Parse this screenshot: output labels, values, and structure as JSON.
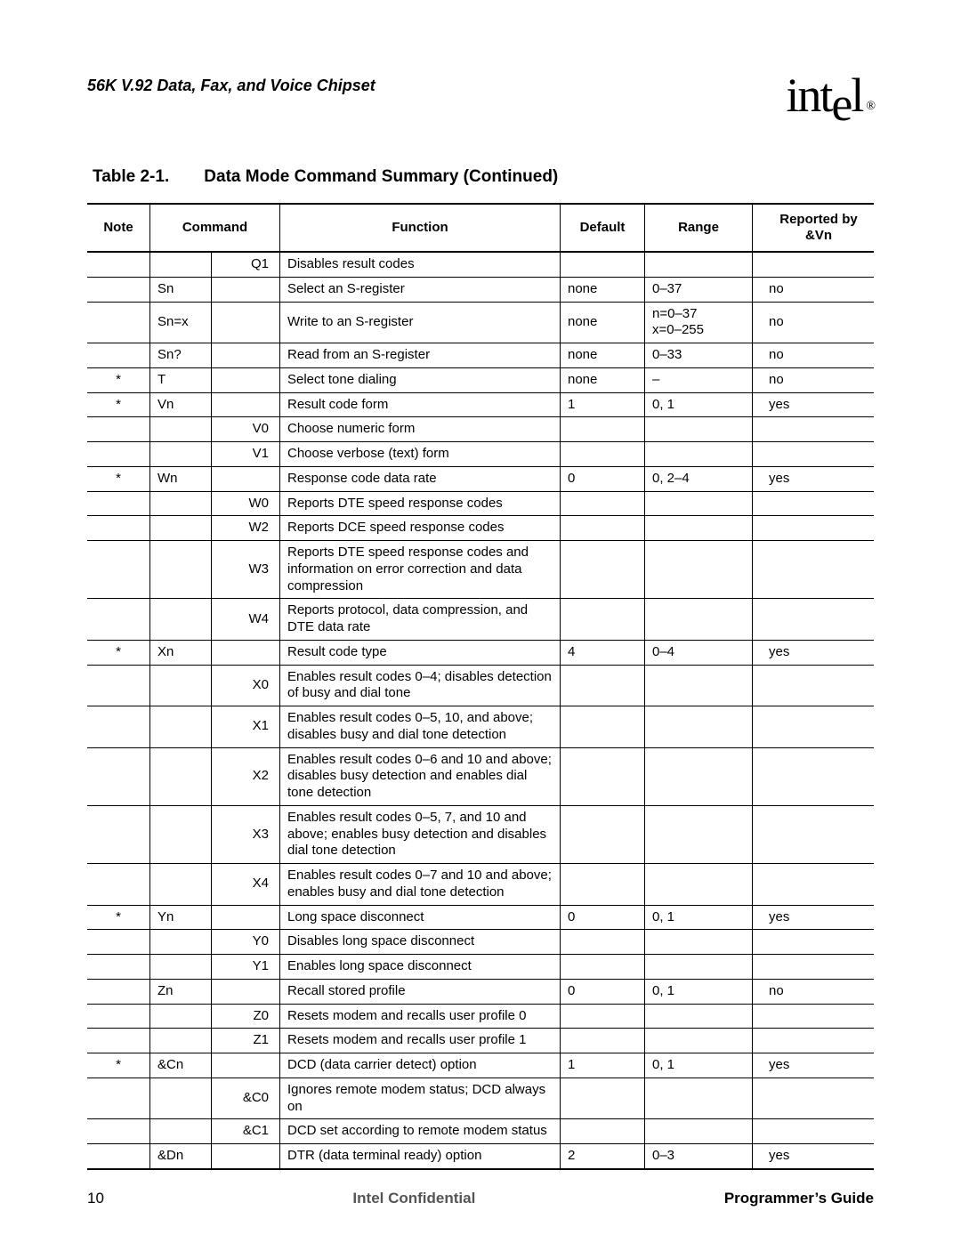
{
  "header": {
    "doc_title": "56K V.92 Data, Fax, and Voice Chipset",
    "logo_text_pre": "int",
    "logo_text_drop": "e",
    "logo_text_post": "l",
    "logo_reg": "®"
  },
  "caption": {
    "number": "Table 2-1.",
    "title": "Data Mode Command Summary (Continued)"
  },
  "columns": {
    "note": "Note",
    "command": "Command",
    "function": "Function",
    "default": "Default",
    "range": "Range",
    "reported": "Reported by &Vn"
  },
  "rows": [
    {
      "note": "",
      "cmd_outer": "",
      "cmd_inner": "Q1",
      "func": "Disables result codes",
      "def": "",
      "range": "",
      "rep": ""
    },
    {
      "note": "",
      "cmd_outer": "Sn",
      "cmd_inner": "",
      "func": "Select an S-register",
      "def": "none",
      "range": "0–37",
      "rep": "no"
    },
    {
      "note": "",
      "cmd_outer": "Sn=x",
      "cmd_inner": "",
      "func": "Write to an S-register",
      "def": "none",
      "range": "n=0–37\nx=0–255",
      "rep": "no"
    },
    {
      "note": "",
      "cmd_outer": "Sn?",
      "cmd_inner": "",
      "func": "Read from an S-register",
      "def": "none",
      "range": "0–33",
      "rep": "no"
    },
    {
      "note": "*",
      "cmd_outer": "T",
      "cmd_inner": "",
      "func": "Select tone dialing",
      "def": "none",
      "range": "–",
      "rep": "no"
    },
    {
      "note": "*",
      "cmd_outer": "Vn",
      "cmd_inner": "",
      "func": "Result code form",
      "def": "1",
      "range": "0, 1",
      "rep": "yes"
    },
    {
      "note": "",
      "cmd_outer": "",
      "cmd_inner": "V0",
      "func": "Choose numeric form",
      "def": "",
      "range": "",
      "rep": ""
    },
    {
      "note": "",
      "cmd_outer": "",
      "cmd_inner": "V1",
      "func": "Choose verbose (text) form",
      "def": "",
      "range": "",
      "rep": ""
    },
    {
      "note": "*",
      "cmd_outer": "Wn",
      "cmd_inner": "",
      "func": "Response code data rate",
      "def": "0",
      "range": "0, 2–4",
      "rep": "yes"
    },
    {
      "note": "",
      "cmd_outer": "",
      "cmd_inner": "W0",
      "func": "Reports DTE speed response codes",
      "def": "",
      "range": "",
      "rep": ""
    },
    {
      "note": "",
      "cmd_outer": "",
      "cmd_inner": "W2",
      "func": "Reports DCE speed response codes",
      "def": "",
      "range": "",
      "rep": ""
    },
    {
      "note": "",
      "cmd_outer": "",
      "cmd_inner": "W3",
      "func": "Reports DTE speed response codes and information on error correction and data compression",
      "def": "",
      "range": "",
      "rep": ""
    },
    {
      "note": "",
      "cmd_outer": "",
      "cmd_inner": "W4",
      "func": "Reports protocol, data compression, and DTE data rate",
      "def": "",
      "range": "",
      "rep": ""
    },
    {
      "note": "*",
      "cmd_outer": "Xn",
      "cmd_inner": "",
      "func": "Result code type",
      "def": "4",
      "range": "0–4",
      "rep": "yes"
    },
    {
      "note": "",
      "cmd_outer": "",
      "cmd_inner": "X0",
      "func": "Enables result codes 0–4; disables detection of busy and dial tone",
      "def": "",
      "range": "",
      "rep": ""
    },
    {
      "note": "",
      "cmd_outer": "",
      "cmd_inner": "X1",
      "func": "Enables result codes 0–5, 10, and above; disables busy and dial tone detection",
      "def": "",
      "range": "",
      "rep": ""
    },
    {
      "note": "",
      "cmd_outer": "",
      "cmd_inner": "X2",
      "func": "Enables result codes 0–6 and 10 and above; disables busy detection and enables dial tone detection",
      "def": "",
      "range": "",
      "rep": ""
    },
    {
      "note": "",
      "cmd_outer": "",
      "cmd_inner": "X3",
      "func": "Enables result codes 0–5, 7, and 10 and above; enables busy detection and disables dial tone detection",
      "def": "",
      "range": "",
      "rep": ""
    },
    {
      "note": "",
      "cmd_outer": "",
      "cmd_inner": "X4",
      "func": "Enables result codes 0–7 and 10 and above; enables busy and dial tone detection",
      "def": "",
      "range": "",
      "rep": ""
    },
    {
      "note": "*",
      "cmd_outer": "Yn",
      "cmd_inner": "",
      "func": "Long space disconnect",
      "def": "0",
      "range": "0, 1",
      "rep": "yes"
    },
    {
      "note": "",
      "cmd_outer": "",
      "cmd_inner": "Y0",
      "func": "Disables long space disconnect",
      "def": "",
      "range": "",
      "rep": ""
    },
    {
      "note": "",
      "cmd_outer": "",
      "cmd_inner": "Y1",
      "func": "Enables long space disconnect",
      "def": "",
      "range": "",
      "rep": ""
    },
    {
      "note": "",
      "cmd_outer": "Zn",
      "cmd_inner": "",
      "func": "Recall stored profile",
      "def": "0",
      "range": "0, 1",
      "rep": "no"
    },
    {
      "note": "",
      "cmd_outer": "",
      "cmd_inner": "Z0",
      "func": "Resets modem and recalls user profile 0",
      "def": "",
      "range": "",
      "rep": ""
    },
    {
      "note": "",
      "cmd_outer": "",
      "cmd_inner": "Z1",
      "func": "Resets modem and recalls user profile 1",
      "def": "",
      "range": "",
      "rep": ""
    },
    {
      "note": "*",
      "cmd_outer": "&Cn",
      "cmd_inner": "",
      "func": "DCD (data carrier detect) option",
      "def": "1",
      "range": "0, 1",
      "rep": "yes"
    },
    {
      "note": "",
      "cmd_outer": "",
      "cmd_inner": "&C0",
      "func": "Ignores remote modem status; DCD always on",
      "def": "",
      "range": "",
      "rep": ""
    },
    {
      "note": "",
      "cmd_outer": "",
      "cmd_inner": "&C1",
      "func": "DCD set according to remote modem status",
      "def": "",
      "range": "",
      "rep": ""
    },
    {
      "note": "",
      "cmd_outer": "&Dn",
      "cmd_inner": "",
      "func": "DTR (data terminal ready) option",
      "def": "2",
      "range": "0–3",
      "rep": "yes"
    }
  ],
  "footer": {
    "page": "10",
    "center": "Intel Confidential",
    "right": "Programmer’s Guide"
  }
}
